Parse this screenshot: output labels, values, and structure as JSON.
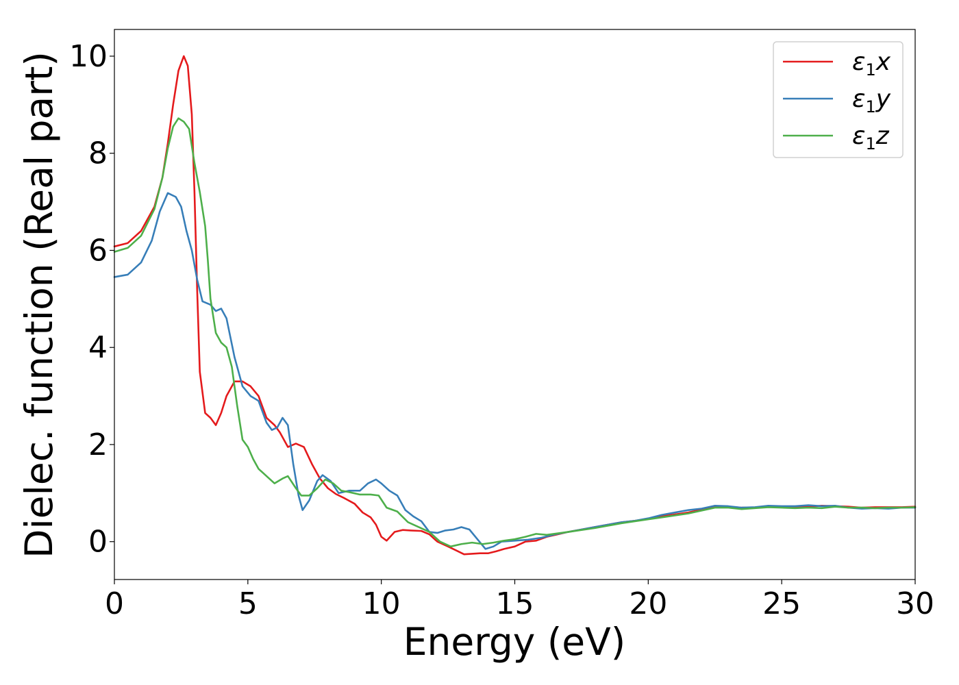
{
  "chart_data": {
    "type": "line",
    "title": "",
    "xlabel": "Energy (eV)",
    "ylabel": "Dielec. function (Real part)",
    "xlim": [
      0,
      30
    ],
    "ylim": [
      -0.78,
      10.55
    ],
    "xticks": [
      0,
      5,
      10,
      15,
      20,
      25,
      30
    ],
    "yticks": [
      0,
      2,
      4,
      6,
      8,
      10
    ],
    "grid": false,
    "legend_position": "top-right",
    "series": [
      {
        "name": "ε1x",
        "legend_main": "ε",
        "legend_sub": "1",
        "legend_var": "x",
        "color": "#e41a1c",
        "points": [
          [
            0,
            6.08
          ],
          [
            0.5,
            6.15
          ],
          [
            1.0,
            6.4
          ],
          [
            1.5,
            6.9
          ],
          [
            1.8,
            7.5
          ],
          [
            2.0,
            8.2
          ],
          [
            2.2,
            9.0
          ],
          [
            2.4,
            9.7
          ],
          [
            2.6,
            10.0
          ],
          [
            2.75,
            9.8
          ],
          [
            2.9,
            8.8
          ],
          [
            3.0,
            7.2
          ],
          [
            3.1,
            5.2
          ],
          [
            3.2,
            3.5
          ],
          [
            3.4,
            2.65
          ],
          [
            3.6,
            2.55
          ],
          [
            3.8,
            2.4
          ],
          [
            4.0,
            2.65
          ],
          [
            4.2,
            3.0
          ],
          [
            4.5,
            3.3
          ],
          [
            4.8,
            3.3
          ],
          [
            5.1,
            3.2
          ],
          [
            5.4,
            3.0
          ],
          [
            5.7,
            2.55
          ],
          [
            6.0,
            2.4
          ],
          [
            6.2,
            2.25
          ],
          [
            6.5,
            1.95
          ],
          [
            6.8,
            2.02
          ],
          [
            7.1,
            1.95
          ],
          [
            7.4,
            1.6
          ],
          [
            7.7,
            1.3
          ],
          [
            8.0,
            1.1
          ],
          [
            8.3,
            0.98
          ],
          [
            8.6,
            0.9
          ],
          [
            9.0,
            0.78
          ],
          [
            9.3,
            0.6
          ],
          [
            9.6,
            0.5
          ],
          [
            9.8,
            0.35
          ],
          [
            10.0,
            0.1
          ],
          [
            10.2,
            0.02
          ],
          [
            10.5,
            0.2
          ],
          [
            10.8,
            0.24
          ],
          [
            11.1,
            0.23
          ],
          [
            11.5,
            0.22
          ],
          [
            11.8,
            0.15
          ],
          [
            12.1,
            0.0
          ],
          [
            12.5,
            -0.1
          ],
          [
            12.8,
            -0.18
          ],
          [
            13.1,
            -0.26
          ],
          [
            13.4,
            -0.25
          ],
          [
            13.7,
            -0.24
          ],
          [
            14.0,
            -0.24
          ],
          [
            14.3,
            -0.2
          ],
          [
            14.6,
            -0.15
          ],
          [
            15.0,
            -0.1
          ],
          [
            15.4,
            0.0
          ],
          [
            15.8,
            0.02
          ],
          [
            16.2,
            0.1
          ],
          [
            16.6,
            0.15
          ],
          [
            17.0,
            0.2
          ],
          [
            17.5,
            0.25
          ],
          [
            18.0,
            0.3
          ],
          [
            18.5,
            0.35
          ],
          [
            19.0,
            0.4
          ],
          [
            19.5,
            0.43
          ],
          [
            20.0,
            0.47
          ],
          [
            20.5,
            0.52
          ],
          [
            21.0,
            0.56
          ],
          [
            21.5,
            0.6
          ],
          [
            22.0,
            0.66
          ],
          [
            22.5,
            0.71
          ],
          [
            23.0,
            0.72
          ],
          [
            23.5,
            0.7
          ],
          [
            24.0,
            0.7
          ],
          [
            24.5,
            0.73
          ],
          [
            25.0,
            0.72
          ],
          [
            25.5,
            0.7
          ],
          [
            26.0,
            0.72
          ],
          [
            26.5,
            0.74
          ],
          [
            27.0,
            0.73
          ],
          [
            27.5,
            0.72
          ],
          [
            28.0,
            0.7
          ],
          [
            28.5,
            0.71
          ],
          [
            29.0,
            0.71
          ],
          [
            29.5,
            0.71
          ],
          [
            30.0,
            0.72
          ]
        ]
      },
      {
        "name": "ε1y",
        "legend_main": "ε",
        "legend_sub": "1",
        "legend_var": "y",
        "color": "#377eb8",
        "points": [
          [
            0,
            5.45
          ],
          [
            0.5,
            5.5
          ],
          [
            1.0,
            5.75
          ],
          [
            1.4,
            6.2
          ],
          [
            1.7,
            6.8
          ],
          [
            2.0,
            7.18
          ],
          [
            2.3,
            7.1
          ],
          [
            2.5,
            6.9
          ],
          [
            2.7,
            6.4
          ],
          [
            2.9,
            6.0
          ],
          [
            3.1,
            5.4
          ],
          [
            3.3,
            4.95
          ],
          [
            3.6,
            4.88
          ],
          [
            3.8,
            4.75
          ],
          [
            4.0,
            4.8
          ],
          [
            4.2,
            4.6
          ],
          [
            4.5,
            3.8
          ],
          [
            4.8,
            3.2
          ],
          [
            5.1,
            3.0
          ],
          [
            5.4,
            2.9
          ],
          [
            5.7,
            2.45
          ],
          [
            5.9,
            2.3
          ],
          [
            6.1,
            2.35
          ],
          [
            6.3,
            2.55
          ],
          [
            6.5,
            2.4
          ],
          [
            6.7,
            1.6
          ],
          [
            6.9,
            0.95
          ],
          [
            7.05,
            0.65
          ],
          [
            7.3,
            0.85
          ],
          [
            7.6,
            1.25
          ],
          [
            7.8,
            1.37
          ],
          [
            8.1,
            1.25
          ],
          [
            8.4,
            1.0
          ],
          [
            8.8,
            1.05
          ],
          [
            9.2,
            1.05
          ],
          [
            9.5,
            1.2
          ],
          [
            9.8,
            1.28
          ],
          [
            10.0,
            1.2
          ],
          [
            10.3,
            1.05
          ],
          [
            10.6,
            0.95
          ],
          [
            10.9,
            0.65
          ],
          [
            11.2,
            0.52
          ],
          [
            11.5,
            0.42
          ],
          [
            11.8,
            0.2
          ],
          [
            12.1,
            0.18
          ],
          [
            12.4,
            0.23
          ],
          [
            12.7,
            0.25
          ],
          [
            13.0,
            0.3
          ],
          [
            13.3,
            0.25
          ],
          [
            13.6,
            0.05
          ],
          [
            13.9,
            -0.15
          ],
          [
            14.2,
            -0.1
          ],
          [
            14.5,
            0.0
          ],
          [
            15.0,
            0.02
          ],
          [
            15.5,
            0.04
          ],
          [
            16.0,
            0.08
          ],
          [
            16.5,
            0.15
          ],
          [
            17.0,
            0.2
          ],
          [
            17.5,
            0.25
          ],
          [
            18.0,
            0.3
          ],
          [
            18.5,
            0.35
          ],
          [
            19.0,
            0.4
          ],
          [
            19.5,
            0.43
          ],
          [
            20.0,
            0.48
          ],
          [
            20.5,
            0.55
          ],
          [
            21.0,
            0.6
          ],
          [
            21.5,
            0.65
          ],
          [
            22.0,
            0.68
          ],
          [
            22.5,
            0.74
          ],
          [
            23.0,
            0.73
          ],
          [
            23.5,
            0.7
          ],
          [
            24.0,
            0.71
          ],
          [
            24.5,
            0.74
          ],
          [
            25.0,
            0.73
          ],
          [
            25.5,
            0.73
          ],
          [
            26.0,
            0.75
          ],
          [
            26.5,
            0.73
          ],
          [
            27.0,
            0.74
          ],
          [
            27.5,
            0.7
          ],
          [
            28.0,
            0.68
          ],
          [
            28.5,
            0.69
          ],
          [
            29.0,
            0.68
          ],
          [
            29.5,
            0.7
          ],
          [
            30.0,
            0.7
          ]
        ]
      },
      {
        "name": "ε1z",
        "legend_main": "ε",
        "legend_sub": "1",
        "legend_var": "z",
        "color": "#4daf4a",
        "points": [
          [
            0,
            5.97
          ],
          [
            0.5,
            6.05
          ],
          [
            1.0,
            6.3
          ],
          [
            1.5,
            6.85
          ],
          [
            1.8,
            7.5
          ],
          [
            2.0,
            8.1
          ],
          [
            2.2,
            8.55
          ],
          [
            2.4,
            8.72
          ],
          [
            2.6,
            8.65
          ],
          [
            2.8,
            8.5
          ],
          [
            3.0,
            7.8
          ],
          [
            3.2,
            7.2
          ],
          [
            3.4,
            6.5
          ],
          [
            3.5,
            5.8
          ],
          [
            3.6,
            5.0
          ],
          [
            3.8,
            4.3
          ],
          [
            4.0,
            4.1
          ],
          [
            4.2,
            4.0
          ],
          [
            4.4,
            3.6
          ],
          [
            4.6,
            2.8
          ],
          [
            4.8,
            2.1
          ],
          [
            5.0,
            1.95
          ],
          [
            5.2,
            1.7
          ],
          [
            5.4,
            1.5
          ],
          [
            5.7,
            1.35
          ],
          [
            6.0,
            1.2
          ],
          [
            6.3,
            1.3
          ],
          [
            6.5,
            1.35
          ],
          [
            6.8,
            1.1
          ],
          [
            7.0,
            0.95
          ],
          [
            7.3,
            0.95
          ],
          [
            7.6,
            1.1
          ],
          [
            7.9,
            1.28
          ],
          [
            8.2,
            1.2
          ],
          [
            8.5,
            1.05
          ],
          [
            8.8,
            1.02
          ],
          [
            9.2,
            0.97
          ],
          [
            9.6,
            0.97
          ],
          [
            9.9,
            0.95
          ],
          [
            10.2,
            0.7
          ],
          [
            10.6,
            0.62
          ],
          [
            11.0,
            0.4
          ],
          [
            11.4,
            0.3
          ],
          [
            11.8,
            0.2
          ],
          [
            12.2,
            0.0
          ],
          [
            12.6,
            -0.1
          ],
          [
            13.0,
            -0.05
          ],
          [
            13.4,
            -0.02
          ],
          [
            13.8,
            -0.05
          ],
          [
            14.2,
            -0.02
          ],
          [
            14.6,
            0.02
          ],
          [
            15.0,
            0.05
          ],
          [
            15.4,
            0.1
          ],
          [
            15.8,
            0.16
          ],
          [
            16.2,
            0.14
          ],
          [
            16.6,
            0.17
          ],
          [
            17.0,
            0.2
          ],
          [
            17.5,
            0.24
          ],
          [
            18.0,
            0.28
          ],
          [
            18.5,
            0.33
          ],
          [
            19.0,
            0.38
          ],
          [
            19.5,
            0.42
          ],
          [
            20.0,
            0.46
          ],
          [
            20.5,
            0.5
          ],
          [
            21.0,
            0.54
          ],
          [
            21.5,
            0.58
          ],
          [
            22.0,
            0.64
          ],
          [
            22.5,
            0.7
          ],
          [
            23.0,
            0.7
          ],
          [
            23.5,
            0.67
          ],
          [
            24.0,
            0.69
          ],
          [
            24.5,
            0.71
          ],
          [
            25.0,
            0.7
          ],
          [
            25.5,
            0.69
          ],
          [
            26.0,
            0.7
          ],
          [
            26.5,
            0.69
          ],
          [
            27.0,
            0.72
          ],
          [
            27.5,
            0.7
          ],
          [
            28.0,
            0.7
          ],
          [
            28.5,
            0.69
          ],
          [
            29.0,
            0.7
          ],
          [
            29.5,
            0.7
          ],
          [
            30.0,
            0.71
          ]
        ]
      }
    ]
  }
}
